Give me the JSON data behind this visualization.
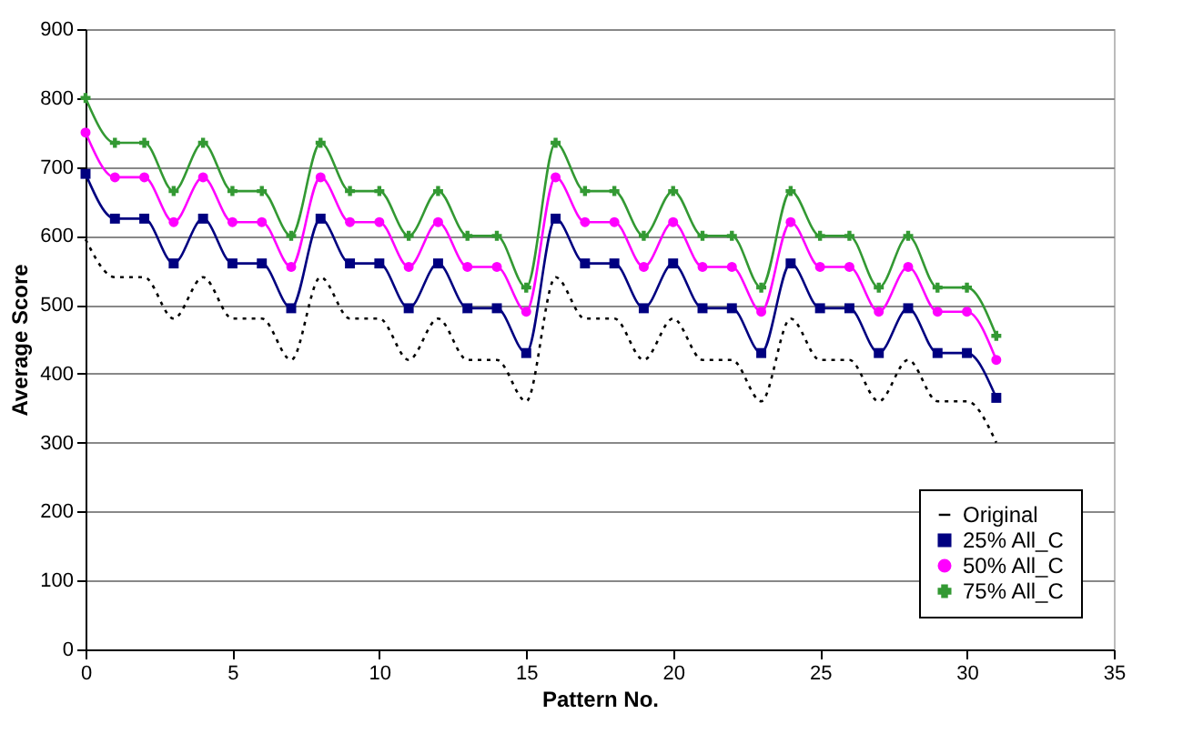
{
  "chart_data": {
    "type": "line",
    "xlabel": "Pattern No.",
    "ylabel": "Average Score",
    "x": [
      0,
      1,
      2,
      3,
      4,
      5,
      6,
      7,
      8,
      9,
      10,
      11,
      12,
      13,
      14,
      15,
      16,
      17,
      18,
      19,
      20,
      21,
      22,
      23,
      24,
      25,
      26,
      27,
      28,
      29,
      30,
      31
    ],
    "series": [
      {
        "name": "Original",
        "color": "#000000",
        "line_style": "dotted",
        "marker": "none",
        "values": [
          595,
          540,
          540,
          480,
          540,
          480,
          480,
          420,
          540,
          480,
          480,
          420,
          480,
          420,
          420,
          360,
          540,
          480,
          480,
          420,
          480,
          420,
          420,
          360,
          480,
          420,
          420,
          360,
          420,
          360,
          360,
          300
        ]
      },
      {
        "name": "25% All_C",
        "color": "#000080",
        "line_style": "solid",
        "marker": "square",
        "values": [
          690,
          625,
          625,
          560,
          625,
          560,
          560,
          495,
          625,
          560,
          560,
          495,
          560,
          495,
          495,
          430,
          625,
          560,
          560,
          495,
          560,
          495,
          495,
          430,
          560,
          495,
          495,
          430,
          495,
          430,
          430,
          365
        ]
      },
      {
        "name": "50% All_C",
        "color": "#ff00ff",
        "line_style": "solid",
        "marker": "circle",
        "values": [
          750,
          685,
          685,
          620,
          685,
          620,
          620,
          555,
          685,
          620,
          620,
          555,
          620,
          555,
          555,
          490,
          685,
          620,
          620,
          555,
          620,
          555,
          555,
          490,
          620,
          555,
          555,
          490,
          555,
          490,
          490,
          420
        ]
      },
      {
        "name": "75% All_C",
        "color": "#339933",
        "line_style": "solid",
        "marker": "cross",
        "values": [
          800,
          735,
          735,
          665,
          735,
          665,
          665,
          600,
          735,
          665,
          665,
          600,
          665,
          600,
          600,
          525,
          735,
          665,
          665,
          600,
          665,
          600,
          600,
          525,
          665,
          600,
          600,
          525,
          600,
          525,
          525,
          455
        ]
      }
    ],
    "xlim": [
      0,
      35
    ],
    "xticks": [
      0,
      5,
      10,
      15,
      20,
      25,
      30,
      35
    ],
    "ylim": [
      0,
      900
    ],
    "yticks": [
      0,
      100,
      200,
      300,
      400,
      500,
      600,
      700,
      800,
      900
    ],
    "grid": "y",
    "legend": "bottom right"
  }
}
